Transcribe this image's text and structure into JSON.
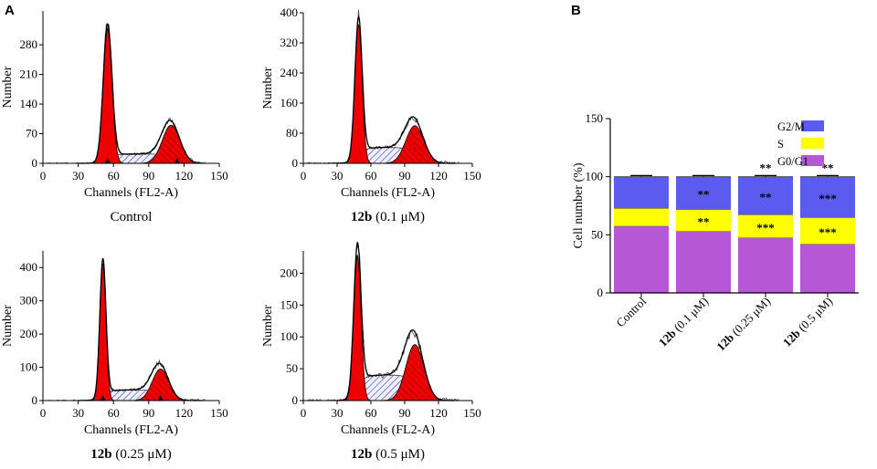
{
  "panel_a_label": "A",
  "panel_b_label": "B",
  "chart_data": [
    {
      "id": "h1",
      "type": "histogram",
      "xlabel": "Channels (FL2-A)",
      "ylabel": "Number",
      "caption": {
        "bold": "",
        "text": "Control"
      },
      "xlim": [
        0,
        150
      ],
      "xticks": [
        "0",
        "30",
        "60",
        "90",
        "120",
        "150"
      ],
      "ylim": [
        0,
        360
      ],
      "yticks": [
        0,
        70,
        140,
        210,
        280
      ],
      "g1": {
        "mean": 55,
        "sd": 3.7,
        "peak": 318
      },
      "g2": {
        "mean": 109,
        "sd": 7.5,
        "peak": 90
      },
      "s": {
        "from": 55,
        "to": 109,
        "level": 22
      },
      "markers": [
        55,
        114
      ]
    },
    {
      "id": "h2",
      "type": "histogram",
      "xlabel": "Channels (FL2-A)",
      "ylabel": "Number",
      "caption": {
        "bold": "12b",
        "text": " (0.1 μM)"
      },
      "xlim": [
        0,
        150
      ],
      "xticks": [
        "0",
        "30",
        "60",
        "90",
        "120",
        "150"
      ],
      "ylim": [
        0,
        400
      ],
      "yticks": [
        0,
        80,
        160,
        240,
        320,
        400
      ],
      "g1": {
        "mean": 49,
        "sd": 3.2,
        "peak": 368
      },
      "g2": {
        "mean": 99,
        "sd": 8.0,
        "peak": 100
      },
      "s": {
        "from": 49,
        "to": 99,
        "level": 42
      },
      "markers": []
    },
    {
      "id": "h3",
      "type": "histogram",
      "xlabel": "Channels (FL2-A)",
      "ylabel": "Number",
      "caption": {
        "bold": "12b",
        "text": " (0.25 μM)"
      },
      "xlim": [
        0,
        150
      ],
      "xticks": [
        "0",
        "30",
        "60",
        "90",
        "120",
        "150"
      ],
      "ylim": [
        0,
        450
      ],
      "yticks": [
        0,
        100,
        200,
        300,
        400
      ],
      "g1": {
        "mean": 51,
        "sd": 2.6,
        "peak": 412
      },
      "g2": {
        "mean": 100,
        "sd": 7.0,
        "peak": 95
      },
      "s": {
        "from": 51,
        "to": 100,
        "level": 32
      },
      "markers": [
        51,
        100
      ]
    },
    {
      "id": "h4",
      "type": "histogram",
      "xlabel": "Channels (FL2-A)",
      "ylabel": "Number",
      "caption": {
        "bold": "12b",
        "text": " (0.5 μM)"
      },
      "xlim": [
        0,
        150
      ],
      "xticks": [
        "0",
        "30",
        "60",
        "90",
        "120",
        "150"
      ],
      "ylim": [
        0,
        235
      ],
      "yticks": [
        0,
        50,
        100,
        150,
        200
      ],
      "g1": {
        "mean": 48,
        "sd": 3.2,
        "peak": 228
      },
      "g2": {
        "mean": 99,
        "sd": 8.0,
        "peak": 88
      },
      "s": {
        "from": 48,
        "to": 99,
        "level": 40
      },
      "markers": []
    },
    {
      "id": "bars",
      "type": "stacked_bar",
      "ylabel": "Cell number (%)",
      "ylim": [
        0,
        150
      ],
      "yticks": [
        "0",
        "50",
        "100",
        "150"
      ],
      "categories": [
        {
          "bold": "",
          "text": "Control"
        },
        {
          "bold": "12b",
          "text": " (0.1 μM)"
        },
        {
          "bold": "12b",
          "text": " (0.25 μM)"
        },
        {
          "bold": "12b",
          "text": " (0.5 μM)"
        }
      ],
      "series": [
        {
          "name": "G0/G1",
          "color": "#b657d6",
          "values": [
            57.5,
            53,
            47.5,
            42
          ],
          "err": [
            1,
            1,
            1,
            1
          ],
          "sig": [
            "",
            "",
            "",
            ""
          ]
        },
        {
          "name": "S",
          "color": "#ffff00",
          "values": [
            15.5,
            19,
            20,
            23
          ],
          "err": [
            1,
            1,
            1,
            1
          ],
          "sig": [
            "",
            "**",
            "***",
            "***"
          ]
        },
        {
          "name": "G2/M",
          "color": "#5b5bf0",
          "values": [
            27,
            28,
            32.5,
            35
          ],
          "err": [
            1,
            1,
            1,
            1
          ],
          "sig": [
            "",
            "**",
            "**",
            "***"
          ]
        }
      ],
      "top_sig": [
        "",
        "",
        "**",
        "**"
      ],
      "legend": [
        "G2/M",
        "S",
        "G0/G1"
      ]
    }
  ]
}
